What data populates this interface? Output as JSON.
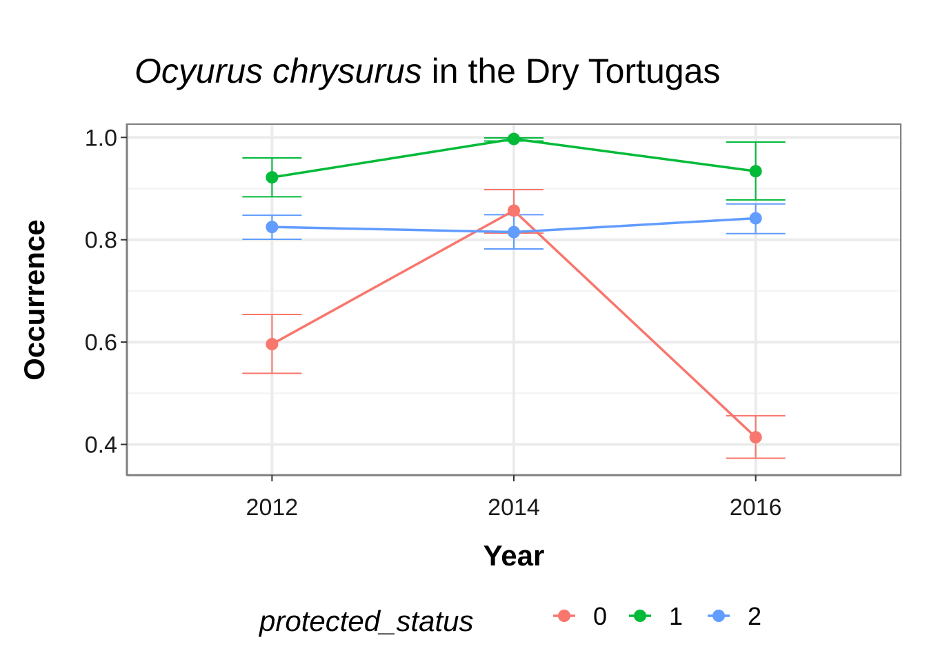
{
  "chart_data": {
    "type": "line",
    "title_italic": "Ocyurus chrysurus",
    "title_rest": " in the Dry Tortugas",
    "xlabel": "Year",
    "ylabel": "Occurrence",
    "x": [
      2012,
      2014,
      2016
    ],
    "x_ticks": [
      "2012",
      "2014",
      "2016"
    ],
    "xlim": [
      2010.8,
      2017.2
    ],
    "y_ticks": [
      "0.4",
      "0.6",
      "0.8",
      "1.0"
    ],
    "ylim": [
      0.34,
      1.026
    ],
    "grid": true,
    "legend_title": "protected_status",
    "legend_position": "bottom",
    "series": [
      {
        "name": "0",
        "color": "#F8766D",
        "values": [
          0.596,
          0.857,
          0.414
        ],
        "lower": [
          0.539,
          0.813,
          0.373
        ],
        "upper": [
          0.654,
          0.898,
          0.456
        ]
      },
      {
        "name": "1",
        "color": "#00BA38",
        "values": [
          0.922,
          0.997,
          0.934
        ],
        "lower": [
          0.884,
          0.993,
          0.878
        ],
        "upper": [
          0.96,
          0.999,
          0.991
        ]
      },
      {
        "name": "2",
        "color": "#619CFF",
        "values": [
          0.825,
          0.815,
          0.842
        ],
        "lower": [
          0.801,
          0.782,
          0.812
        ],
        "upper": [
          0.848,
          0.849,
          0.87
        ]
      }
    ]
  }
}
